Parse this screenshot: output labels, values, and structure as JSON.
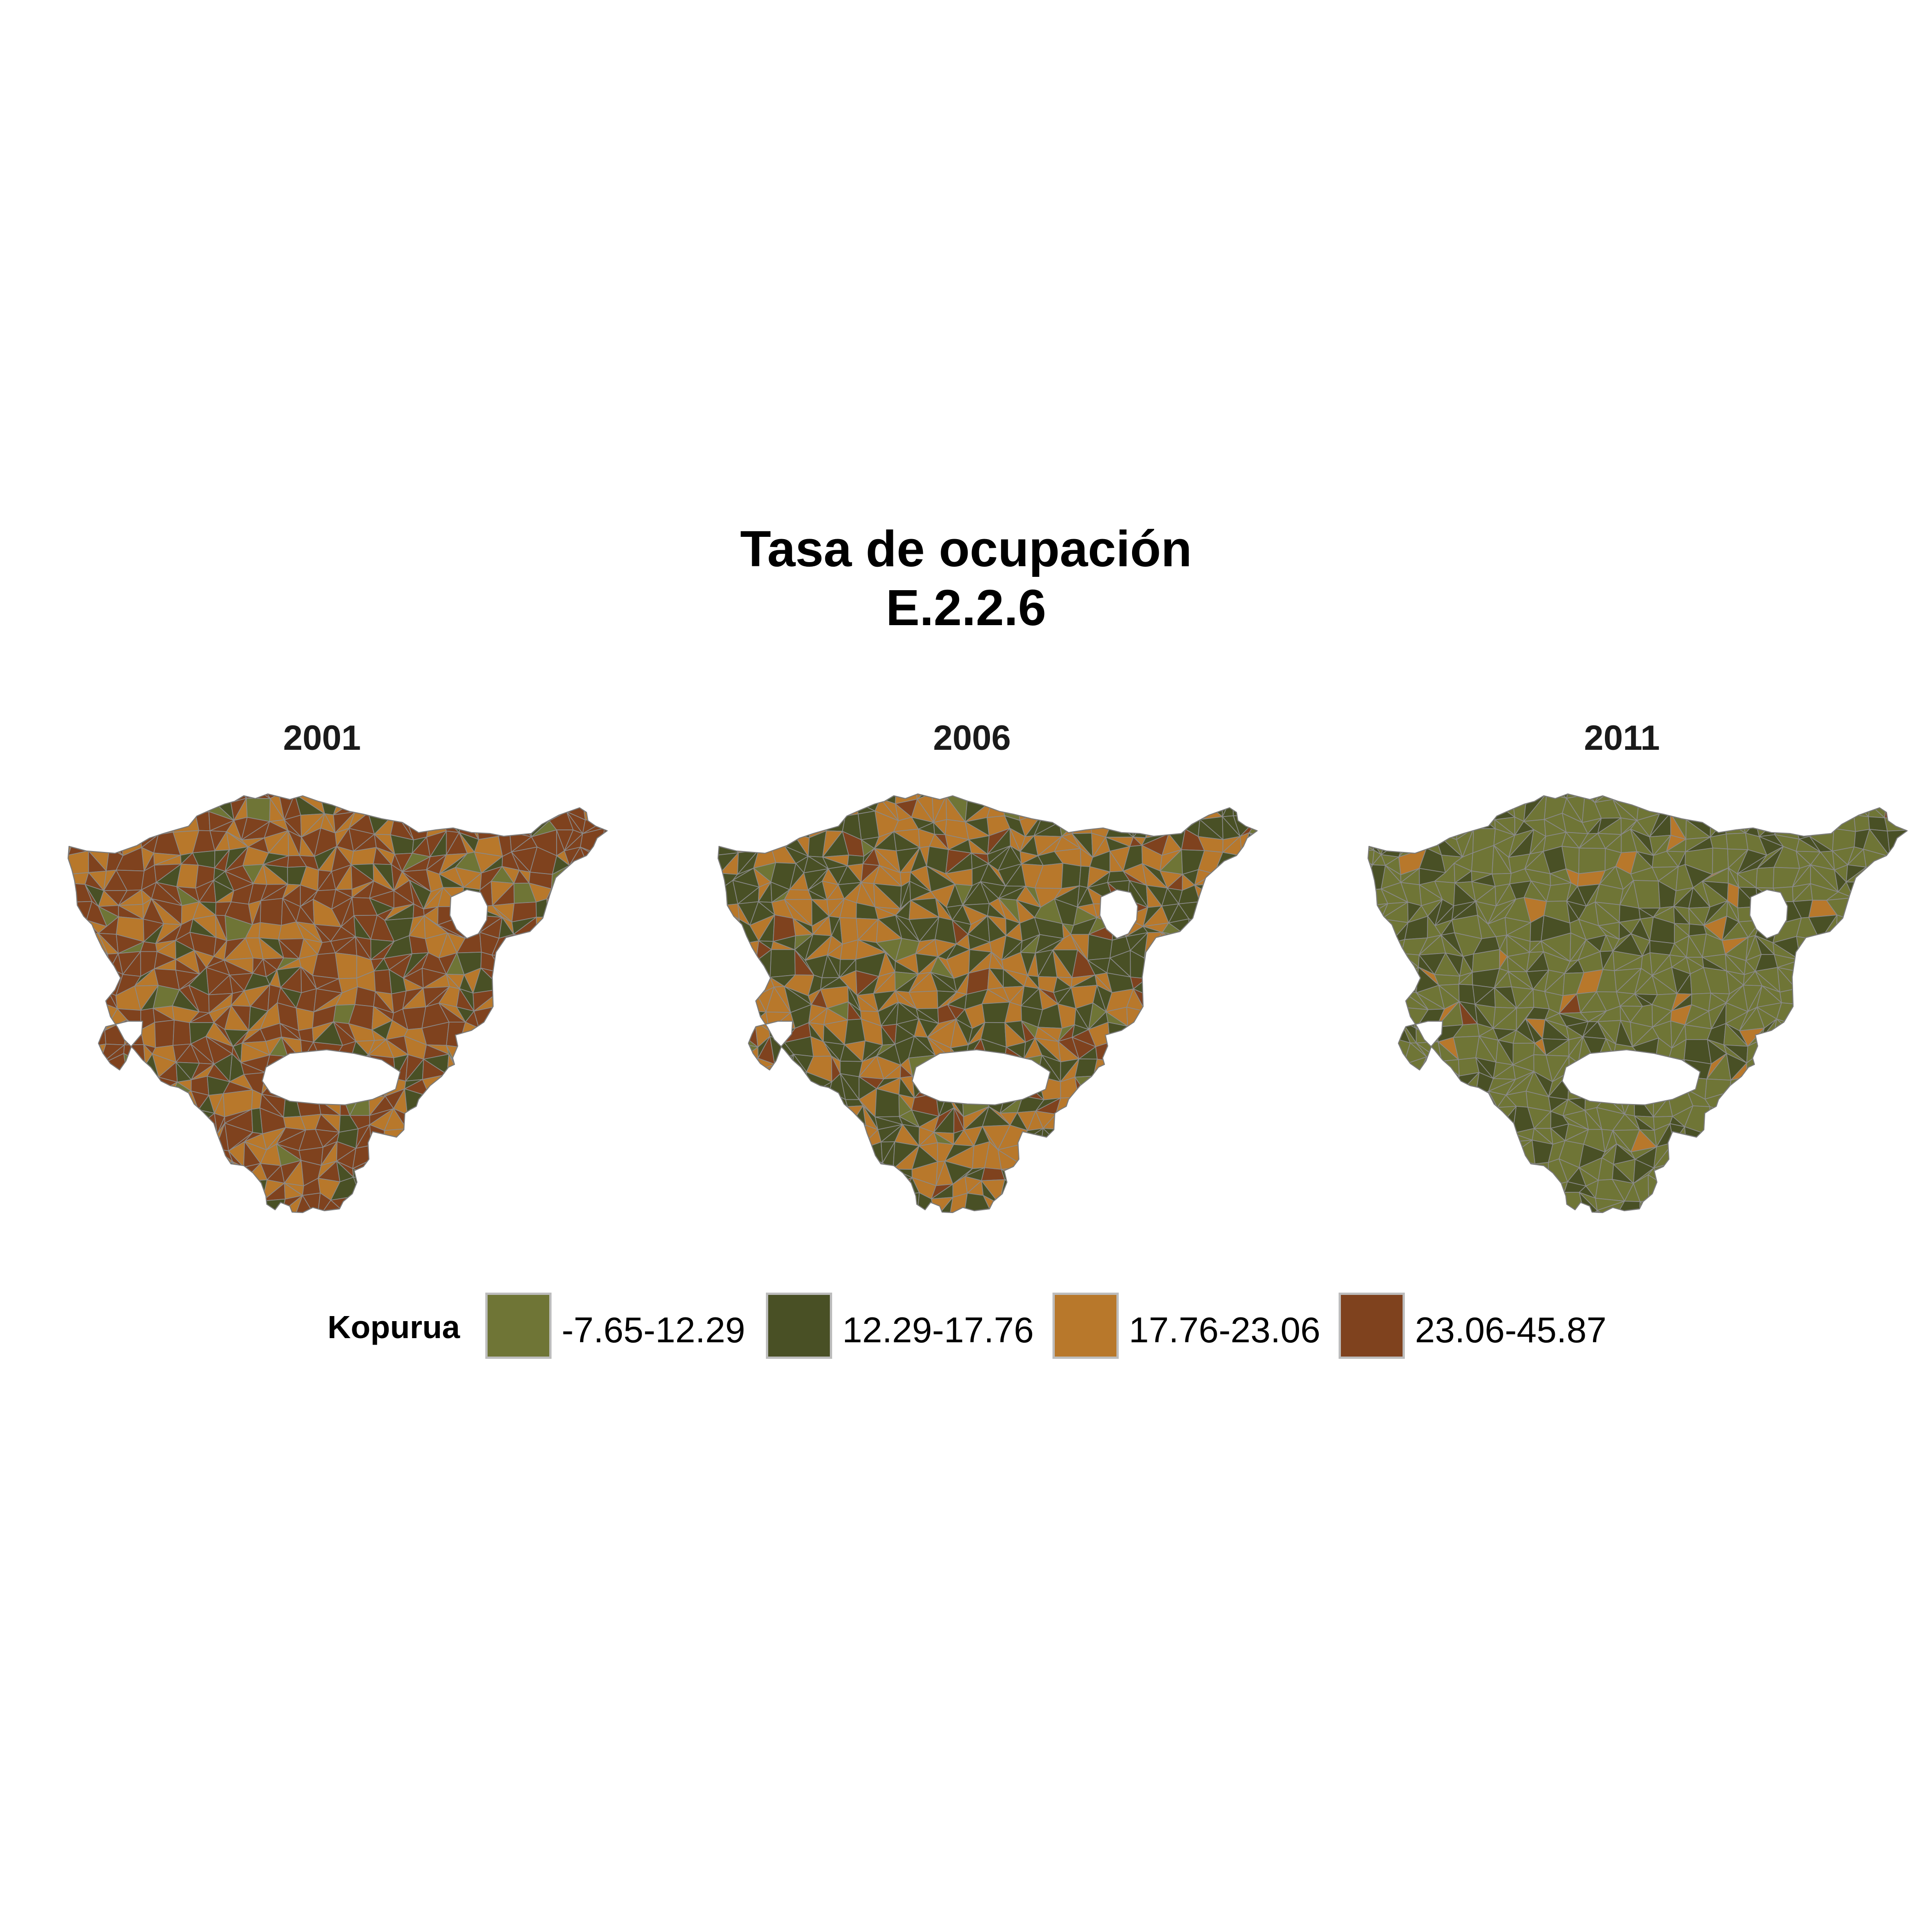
{
  "title": {
    "line1": "Tasa de ocupación",
    "line2": "E.2.2.6"
  },
  "panels": [
    {
      "label": "2001",
      "class_weights": [
        0.03,
        0.12,
        0.33,
        0.52
      ]
    },
    {
      "label": "2006",
      "class_weights": [
        0.05,
        0.44,
        0.42,
        0.09
      ]
    },
    {
      "label": "2011",
      "class_weights": [
        0.72,
        0.24,
        0.03,
        0.01
      ]
    }
  ],
  "legend": {
    "title": "Kopurua",
    "items": [
      {
        "label": "-7.65-12.29",
        "color": "#6f7536"
      },
      {
        "label": "12.29-17.76",
        "color": "#495025"
      },
      {
        "label": "17.76-23.06",
        "color": "#b8782b"
      },
      {
        "label": "23.06-45.87",
        "color": "#7f421e"
      }
    ]
  },
  "colors": {
    "border": "#8a8a8a",
    "background": "#ffffff"
  }
}
